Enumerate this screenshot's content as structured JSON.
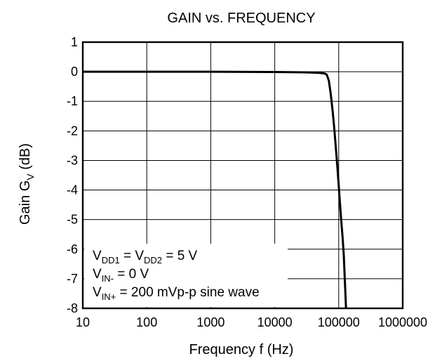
{
  "chart_data": {
    "type": "line",
    "title": "GAIN vs. FREQUENCY",
    "xlabel": "Frequency f (Hz)",
    "ylabel": {
      "main": "Gain G",
      "sub": "V",
      "unit": " (dB)"
    },
    "xscale": "log",
    "xlim": [
      10,
      1000000
    ],
    "ylim": [
      -8,
      1
    ],
    "xticks": [
      "10",
      "100",
      "1000",
      "10000",
      "100000",
      "1000000"
    ],
    "yticks": [
      "1",
      "0",
      "-1",
      "-2",
      "-3",
      "-4",
      "-5",
      "-6",
      "-7",
      "-8"
    ],
    "grid": true,
    "series": [
      {
        "x": [
          10,
          100,
          1000,
          10000,
          30000,
          50000,
          60000,
          65000,
          70000,
          75000,
          80000,
          85000,
          90000,
          95000,
          100000,
          105000,
          110000,
          115000,
          120000,
          125000,
          130000
        ],
        "y": [
          0,
          0,
          0,
          -0.01,
          -0.02,
          -0.04,
          -0.06,
          -0.1,
          -0.3,
          -0.75,
          -1.3,
          -1.9,
          -2.55,
          -3.2,
          -3.85,
          -4.5,
          -5.1,
          -5.6,
          -6.2,
          -7.1,
          -8
        ]
      }
    ],
    "annotations": [
      {
        "parts": [
          [
            "V",
            ""
          ],
          [
            "DD1",
            "sub"
          ],
          [
            " = V",
            ""
          ],
          [
            "DD2",
            "sub"
          ],
          [
            " = 5 V",
            ""
          ]
        ]
      },
      {
        "parts": [
          [
            "V",
            ""
          ],
          [
            "IN-",
            "sub"
          ],
          [
            " = 0 V",
            ""
          ]
        ]
      },
      {
        "parts": [
          [
            "V",
            ""
          ],
          [
            "IN+",
            "sub"
          ],
          [
            " = 200 mVp-p sine wave",
            ""
          ]
        ]
      }
    ],
    "colors": {
      "line": "#000000",
      "grid": "#000000",
      "background": "#ffffff"
    }
  }
}
